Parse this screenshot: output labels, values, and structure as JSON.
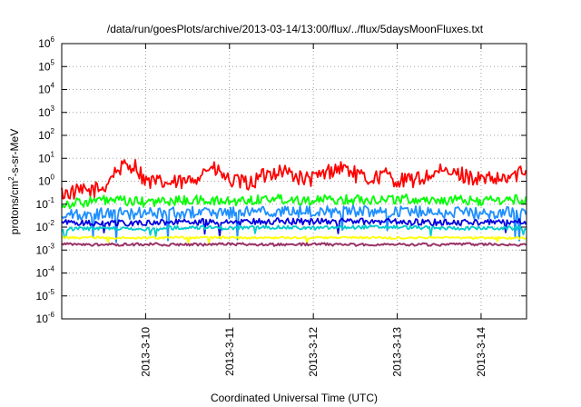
{
  "chart_data": {
    "type": "line",
    "title": "/data/run/goesPlots/archive/2013-03-14/13:00/flux/../flux/5daysMoonFluxes.txt",
    "xlabel": "Coordinated Universal Time (UTC)",
    "ylabel": "protons/cm²-s-sr-MeV",
    "ylabel_parts": {
      "pre": "protons/cm",
      "sup": "2",
      "post": "-s-sr-MeV"
    },
    "y_scale": "log",
    "ylim": [
      1e-06,
      1000000.0
    ],
    "y_ticks": [
      {
        "base": "10",
        "exp": "-6",
        "value": 1e-06
      },
      {
        "base": "10",
        "exp": "-5",
        "value": 1e-05
      },
      {
        "base": "10",
        "exp": "-4",
        "value": 0.0001
      },
      {
        "base": "10",
        "exp": "-3",
        "value": 0.001
      },
      {
        "base": "10",
        "exp": "-2",
        "value": 0.01
      },
      {
        "base": "10",
        "exp": "-1",
        "value": 0.1
      },
      {
        "base": "10",
        "exp": "0",
        "value": 1.0
      },
      {
        "base": "10",
        "exp": "1",
        "value": 10.0
      },
      {
        "base": "10",
        "exp": "2",
        "value": 100.0
      },
      {
        "base": "10",
        "exp": "3",
        "value": 1000.0
      },
      {
        "base": "10",
        "exp": "4",
        "value": 10000.0
      },
      {
        "base": "10",
        "exp": "5",
        "value": 100000.0
      },
      {
        "base": "10",
        "exp": "6",
        "value": 1000000.0
      }
    ],
    "xlim": [
      "2013-03-09 00:00",
      "2013-03-14 13:00"
    ],
    "x_ticks": [
      "2013-3-10",
      "2013-3-11",
      "2013-3-12",
      "2013-3-13",
      "2013-3-14"
    ],
    "grid": true,
    "series": [
      {
        "color": "#ff0000",
        "x": [
          "2013-03-09 00:00",
          "2013-03-09 06:00",
          "2013-03-09 12:00",
          "2013-03-09 15:00",
          "2013-03-09 18:00",
          "2013-03-09 21:00",
          "2013-03-10 00:00",
          "2013-03-10 06:00",
          "2013-03-10 12:00",
          "2013-03-10 15:00",
          "2013-03-10 18:00",
          "2013-03-10 21:00",
          "2013-03-11 00:00",
          "2013-03-11 06:00",
          "2013-03-11 09:00",
          "2013-03-11 12:00",
          "2013-03-11 15:00",
          "2013-03-11 18:00",
          "2013-03-11 21:00",
          "2013-03-12 00:00",
          "2013-03-12 06:00",
          "2013-03-12 09:00",
          "2013-03-12 12:00",
          "2013-03-12 15:00",
          "2013-03-12 18:00",
          "2013-03-12 21:00",
          "2013-03-13 00:00",
          "2013-03-13 06:00",
          "2013-03-13 12:00",
          "2013-03-13 18:00",
          "2013-03-14 00:00",
          "2013-03-14 06:00",
          "2013-03-14 13:00"
        ],
        "values": [
          0.3,
          0.35,
          0.5,
          2.5,
          4.5,
          5,
          1,
          0.8,
          0.9,
          1.8,
          4,
          2.5,
          1,
          0.8,
          1.5,
          2.5,
          3,
          2,
          1.2,
          1.3,
          3.5,
          4,
          2,
          1.2,
          1.5,
          2,
          1,
          1.2,
          2.5,
          2,
          1.2,
          1.1,
          3
        ]
      },
      {
        "color": "#00ff00",
        "x": [
          "2013-03-09 00:00",
          "2013-03-09 12:00",
          "2013-03-10 00:00",
          "2013-03-10 12:00",
          "2013-03-11 00:00",
          "2013-03-11 12:00",
          "2013-03-12 00:00",
          "2013-03-12 12:00",
          "2013-03-13 00:00",
          "2013-03-13 12:00",
          "2013-03-14 00:00",
          "2013-03-14 13:00"
        ],
        "values": [
          0.1,
          0.15,
          0.12,
          0.15,
          0.13,
          0.18,
          0.15,
          0.16,
          0.17,
          0.15,
          0.14,
          0.16
        ]
      },
      {
        "color": "#1f8fff",
        "x": [
          "2013-03-09 00:00",
          "2013-03-09 12:00",
          "2013-03-10 00:00",
          "2013-03-10 12:00",
          "2013-03-11 00:00",
          "2013-03-11 12:00",
          "2013-03-12 00:00",
          "2013-03-12 12:00",
          "2013-03-13 00:00",
          "2013-03-13 12:00",
          "2013-03-14 00:00",
          "2013-03-14 13:00"
        ],
        "values": [
          0.03,
          0.04,
          0.04,
          0.045,
          0.04,
          0.05,
          0.045,
          0.05,
          0.05,
          0.045,
          0.04,
          0.045
        ]
      },
      {
        "color": "#0000e0",
        "x": [
          "2013-03-09 00:00",
          "2013-03-09 12:00",
          "2013-03-10 00:00",
          "2013-03-10 12:00",
          "2013-03-11 00:00",
          "2013-03-11 12:00",
          "2013-03-12 00:00",
          "2013-03-12 12:00",
          "2013-03-13 00:00",
          "2013-03-13 12:00",
          "2013-03-14 00:00",
          "2013-03-14 13:00"
        ],
        "values": [
          0.015,
          0.016,
          0.015,
          0.017,
          0.016,
          0.018,
          0.017,
          0.018,
          0.017,
          0.016,
          0.016,
          0.017
        ]
      },
      {
        "color": "#00cccc",
        "x": [
          "2013-03-09 00:00",
          "2013-03-09 12:00",
          "2013-03-10 00:00",
          "2013-03-10 12:00",
          "2013-03-11 00:00",
          "2013-03-11 12:00",
          "2013-03-12 00:00",
          "2013-03-12 12:00",
          "2013-03-13 00:00",
          "2013-03-13 12:00",
          "2013-03-14 00:00",
          "2013-03-14 13:00"
        ],
        "values": [
          0.008,
          0.009,
          0.008,
          0.01,
          0.009,
          0.01,
          0.009,
          0.01,
          0.01,
          0.009,
          0.009,
          0.009
        ]
      },
      {
        "color": "#ffff00",
        "x": [
          "2013-03-09 00:00",
          "2013-03-09 12:00",
          "2013-03-10 00:00",
          "2013-03-10 12:00",
          "2013-03-11 00:00",
          "2013-03-11 12:00",
          "2013-03-12 00:00",
          "2013-03-12 12:00",
          "2013-03-13 00:00",
          "2013-03-13 12:00",
          "2013-03-14 00:00",
          "2013-03-14 13:00"
        ],
        "values": [
          0.0035,
          0.0035,
          0.0034,
          0.0035,
          0.0035,
          0.0034,
          0.0035,
          0.0035,
          0.0034,
          0.0035,
          0.0034,
          0.0034
        ]
      },
      {
        "color": "#993366",
        "x": [
          "2013-03-09 00:00",
          "2013-03-09 12:00",
          "2013-03-10 00:00",
          "2013-03-10 12:00",
          "2013-03-11 00:00",
          "2013-03-11 12:00",
          "2013-03-12 00:00",
          "2013-03-12 12:00",
          "2013-03-13 00:00",
          "2013-03-13 12:00",
          "2013-03-14 00:00",
          "2013-03-14 13:00"
        ],
        "values": [
          0.0018,
          0.0017,
          0.0018,
          0.0017,
          0.0018,
          0.0017,
          0.0018,
          0.0017,
          0.0018,
          0.0017,
          0.0018,
          0.0017
        ]
      }
    ]
  }
}
